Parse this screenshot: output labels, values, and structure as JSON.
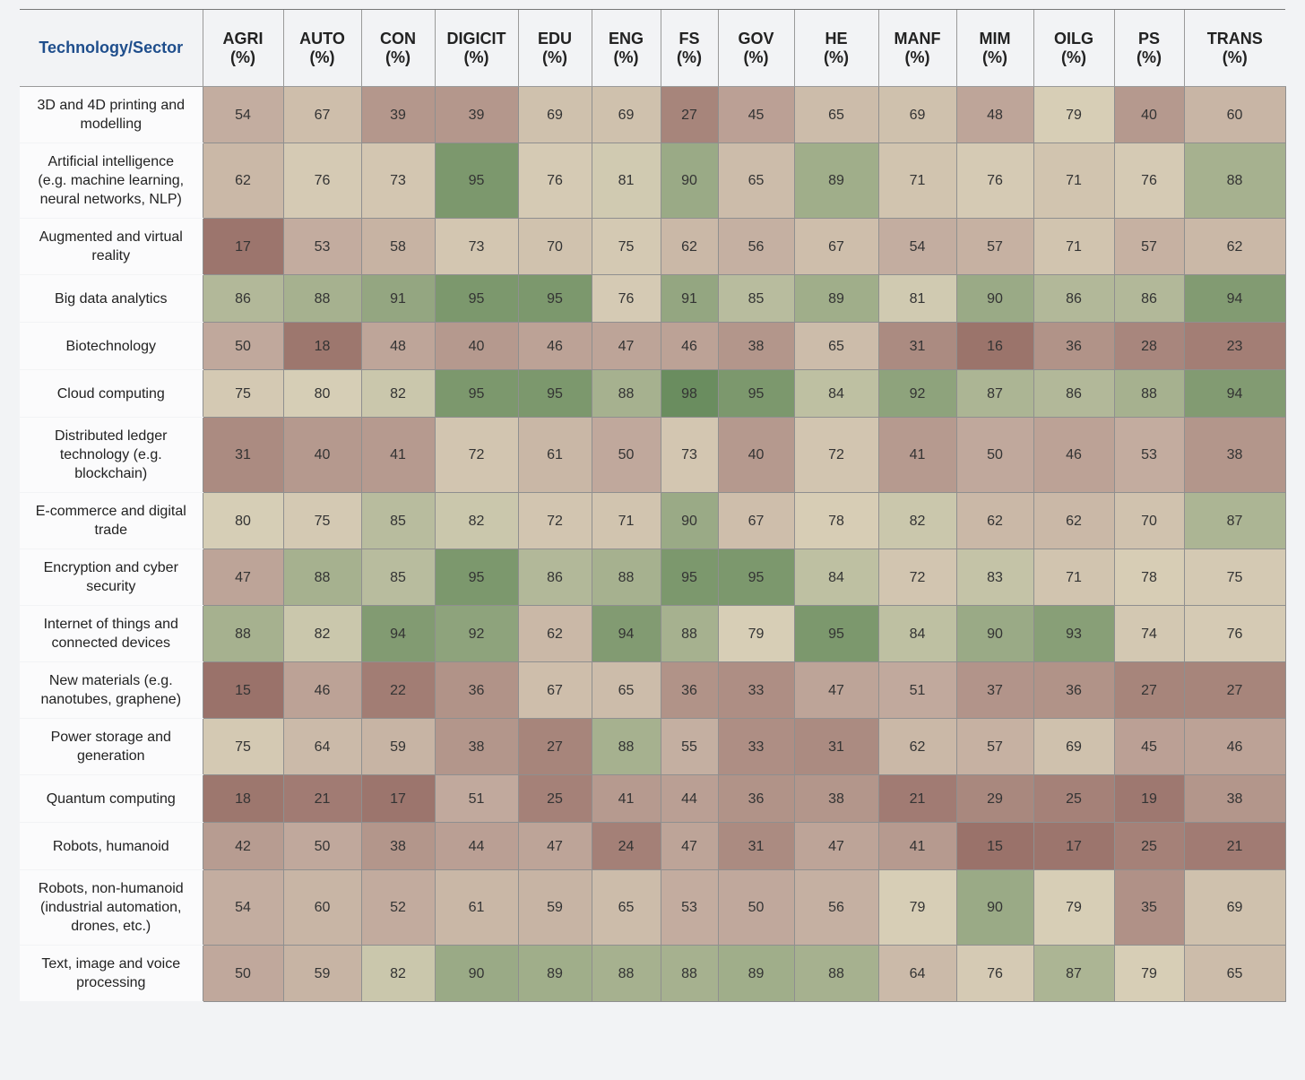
{
  "chart_data": {
    "type": "heatmap",
    "corner_label": "Technology/Sector",
    "columns": [
      "AGRI (%)",
      "AUTO (%)",
      "CON (%)",
      "DIGICIT (%)",
      "EDU (%)",
      "ENG (%)",
      "FS (%)",
      "GOV (%)",
      "HE (%)",
      "MANF (%)",
      "MIM (%)",
      "OILG (%)",
      "PS (%)",
      "TRANS (%)"
    ],
    "categories": [
      "3D and 4D printing and modelling",
      "Artificial intelligence (e.g. machine learning, neural networks, NLP)",
      "Augmented and virtual reality",
      "Big data analytics",
      "Biotechnology",
      "Cloud computing",
      "Distributed ledger technology (e.g. blockchain)",
      "E-commerce and digital trade",
      "Encryption and cyber security",
      "Internet of things and connected devices",
      "New materials (e.g. nanotubes, graphene)",
      "Power storage and generation",
      "Quantum computing",
      "Robots, humanoid",
      "Robots, non-humanoid (industrial automation, drones, etc.)",
      "Text, image and voice processing"
    ],
    "values": [
      [
        54,
        67,
        39,
        39,
        69,
        69,
        27,
        45,
        65,
        69,
        48,
        79,
        40,
        60
      ],
      [
        62,
        76,
        73,
        95,
        76,
        81,
        90,
        65,
        89,
        71,
        76,
        71,
        76,
        88
      ],
      [
        17,
        53,
        58,
        73,
        70,
        75,
        62,
        56,
        67,
        54,
        57,
        71,
        57,
        62
      ],
      [
        86,
        88,
        91,
        95,
        95,
        76,
        91,
        85,
        89,
        81,
        90,
        86,
        86,
        94
      ],
      [
        50,
        18,
        48,
        40,
        46,
        47,
        46,
        38,
        65,
        31,
        16,
        36,
        28,
        23
      ],
      [
        75,
        80,
        82,
        95,
        95,
        88,
        98,
        95,
        84,
        92,
        87,
        86,
        88,
        94
      ],
      [
        31,
        40,
        41,
        72,
        61,
        50,
        73,
        40,
        72,
        41,
        50,
        46,
        53,
        38
      ],
      [
        80,
        75,
        85,
        82,
        72,
        71,
        90,
        67,
        78,
        82,
        62,
        62,
        70,
        87
      ],
      [
        47,
        88,
        85,
        95,
        86,
        88,
        95,
        95,
        84,
        72,
        83,
        71,
        78,
        75
      ],
      [
        88,
        82,
        94,
        92,
        62,
        94,
        88,
        79,
        95,
        84,
        90,
        93,
        74,
        76
      ],
      [
        15,
        46,
        22,
        36,
        67,
        65,
        36,
        33,
        47,
        51,
        37,
        36,
        27,
        27
      ],
      [
        75,
        64,
        59,
        38,
        27,
        88,
        55,
        33,
        31,
        62,
        57,
        69,
        45,
        46
      ],
      [
        18,
        21,
        17,
        51,
        25,
        41,
        44,
        36,
        38,
        21,
        29,
        25,
        19,
        38
      ],
      [
        42,
        50,
        38,
        44,
        47,
        24,
        47,
        31,
        47,
        41,
        15,
        17,
        25,
        21
      ],
      [
        54,
        60,
        52,
        61,
        59,
        65,
        53,
        50,
        56,
        79,
        90,
        79,
        35,
        69
      ],
      [
        50,
        59,
        82,
        90,
        89,
        88,
        88,
        89,
        88,
        64,
        76,
        87,
        79,
        65
      ]
    ],
    "colors": [
      "#9a726a",
      "#c0a89c",
      "#d8cfb7",
      "#6a8d5f"
    ]
  }
}
